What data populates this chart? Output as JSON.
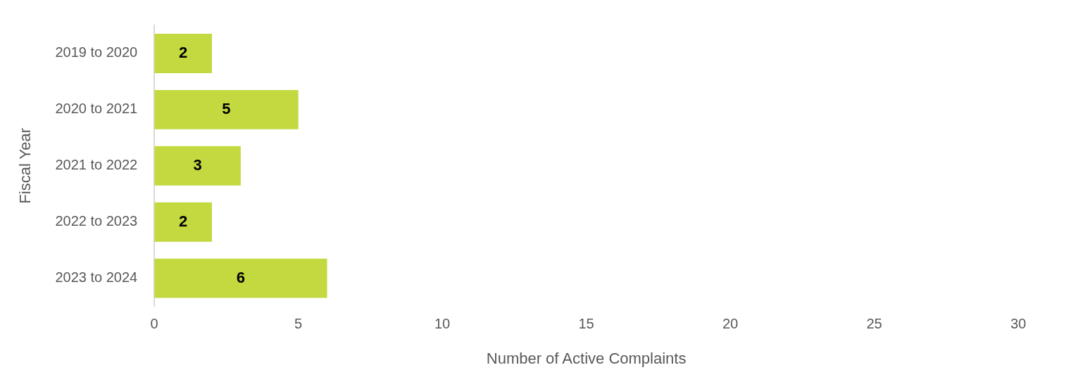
{
  "chart_data": {
    "type": "bar",
    "orientation": "horizontal",
    "xlabel": "Number of Active Complaints",
    "ylabel": "Fiscal Year",
    "categories": [
      "2019 to 2020",
      "2020 to 2021",
      "2021 to 2022",
      "2022 to 2023",
      "2023 to 2024"
    ],
    "values": [
      2,
      5,
      3,
      2,
      6
    ],
    "color": "#c4d940",
    "xlim": [
      0,
      30
    ],
    "xticks": [
      0,
      5,
      10,
      15,
      20,
      25,
      30
    ],
    "grid": false,
    "legend": false,
    "data_labels": true
  }
}
